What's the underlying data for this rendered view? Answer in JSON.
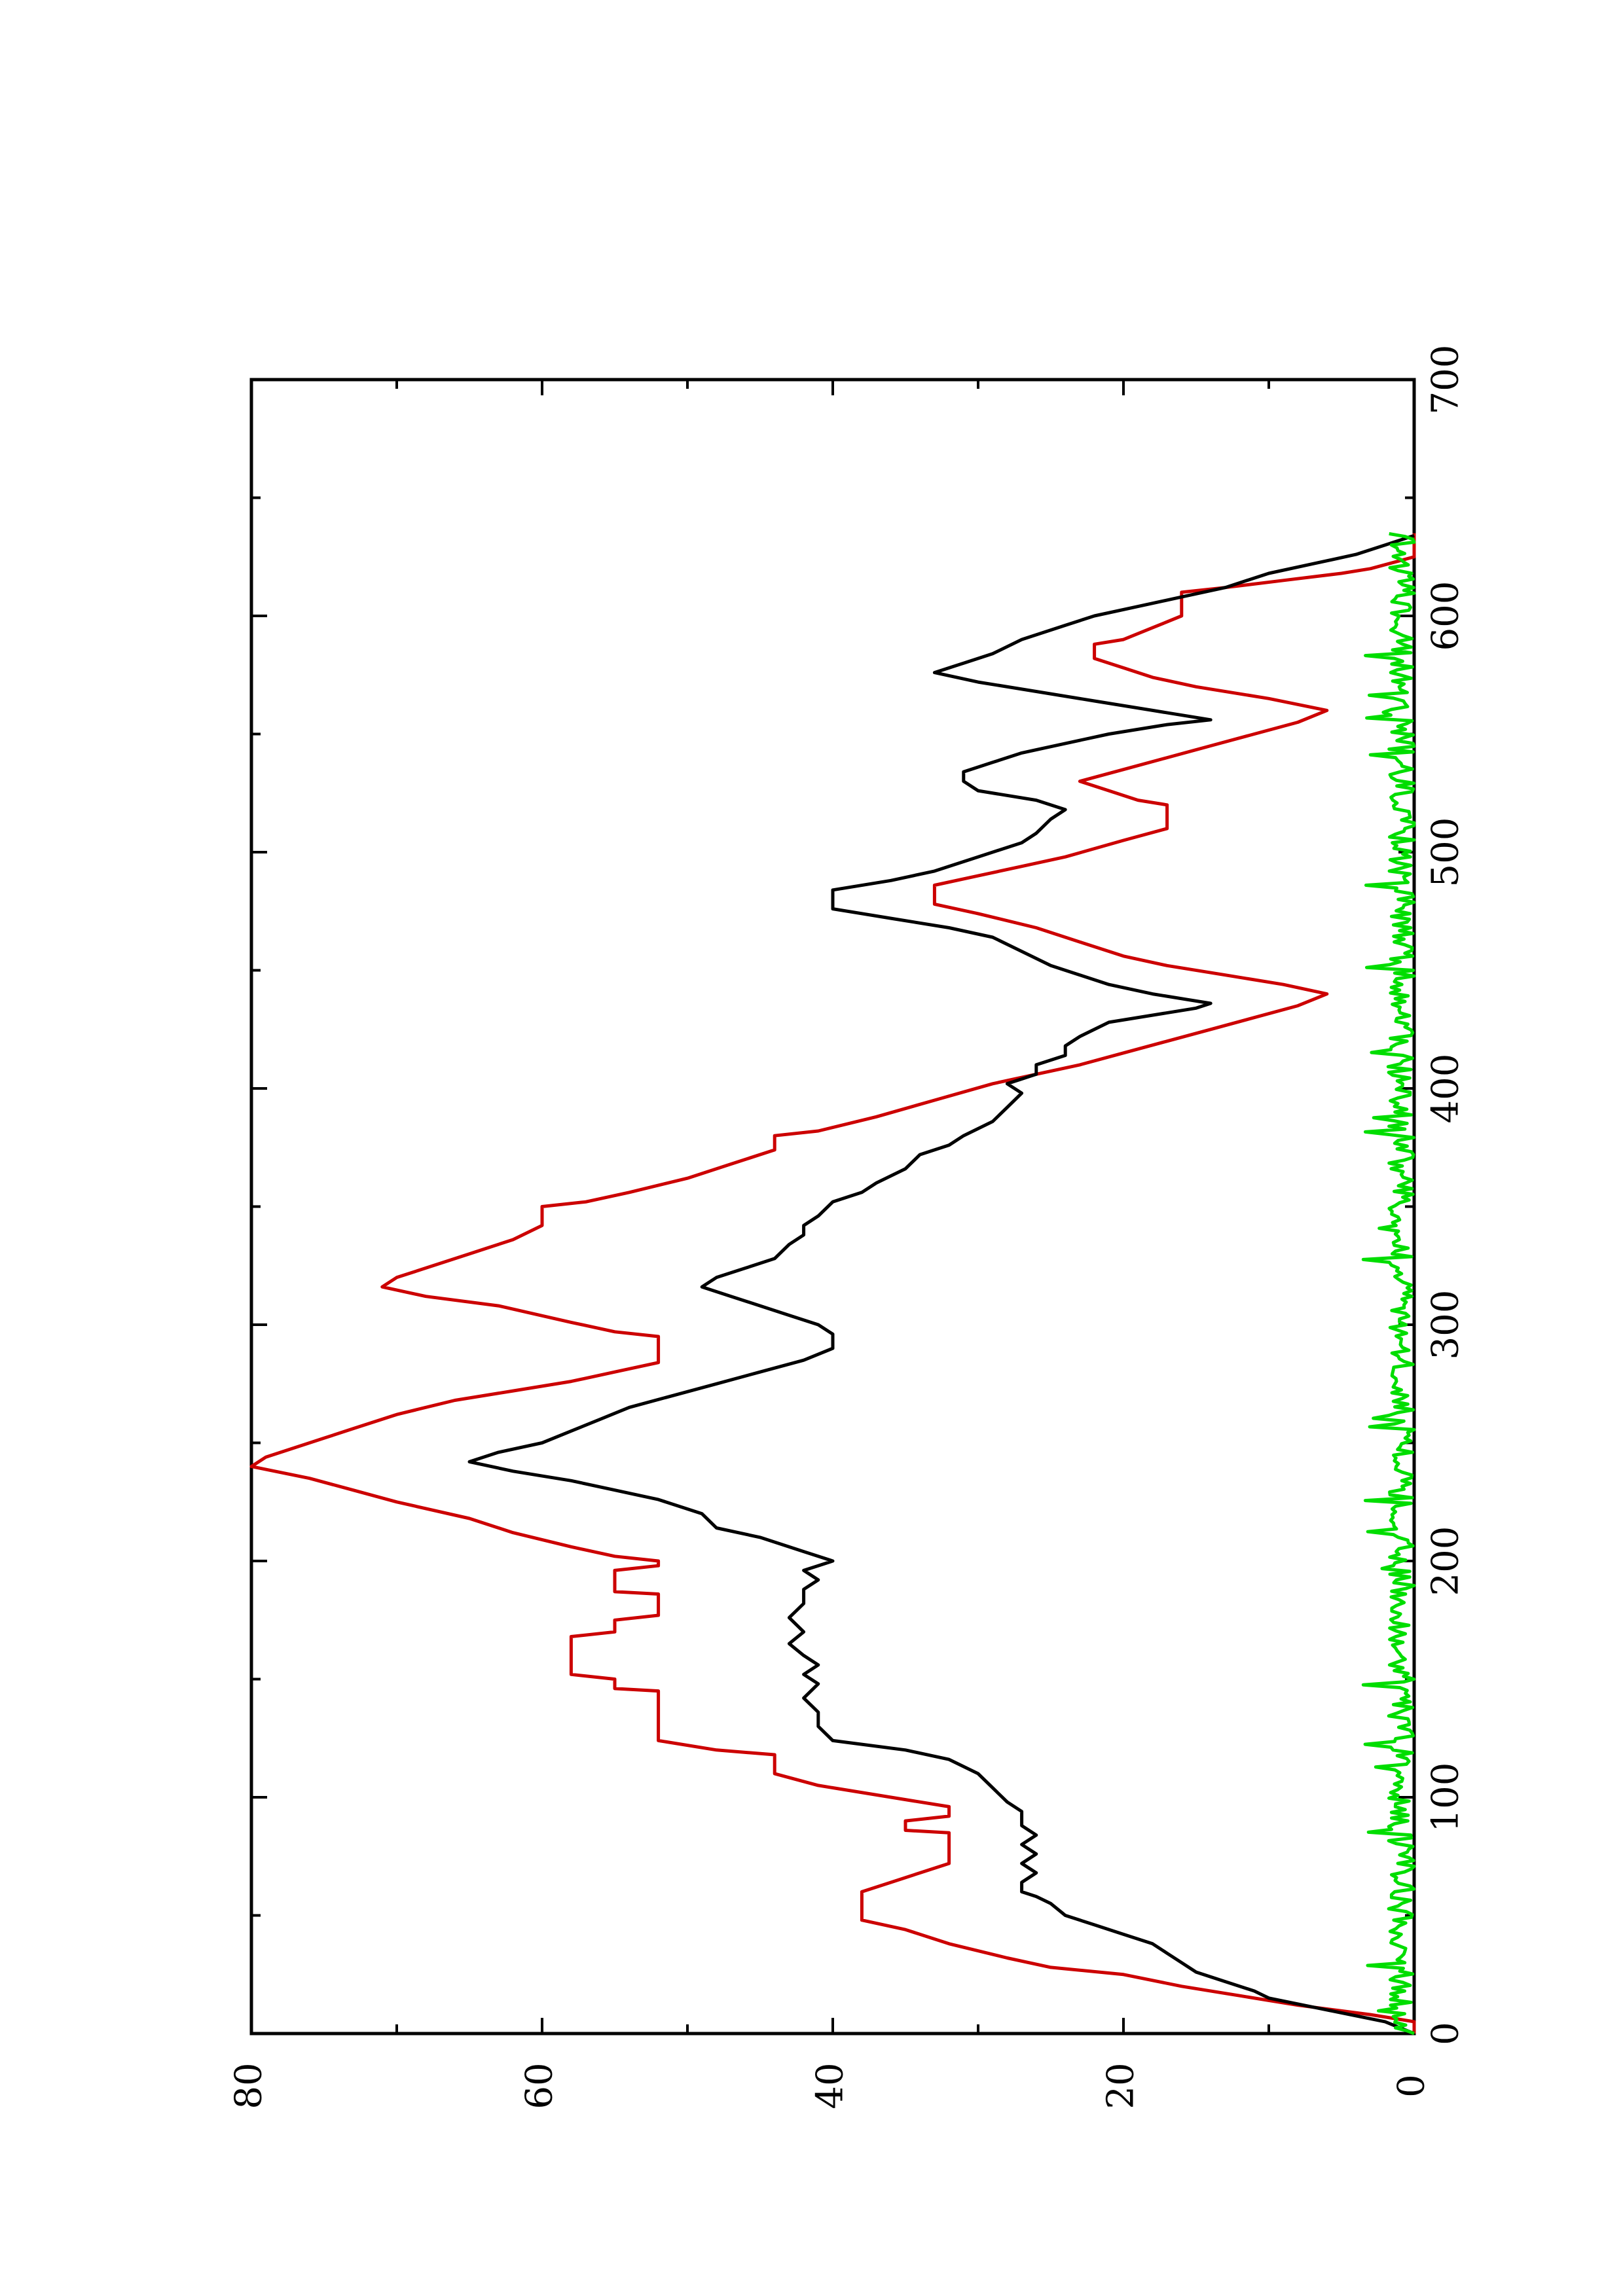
{
  "chart_data": {
    "type": "line",
    "orientation": "rotated-90-ccw",
    "title": "",
    "xlabel": "",
    "ylabel": "",
    "xlim": [
      0,
      700
    ],
    "ylim": [
      0,
      80
    ],
    "x_ticks": [
      0,
      100,
      200,
      300,
      400,
      500,
      600,
      700
    ],
    "y_ticks": [
      0,
      20,
      40,
      60,
      80
    ],
    "x_tick_labels": [
      "0",
      "100",
      "200",
      "300",
      "400",
      "500",
      "600",
      "700"
    ],
    "y_tick_labels": [
      "0",
      "20",
      "40",
      "60",
      "80"
    ],
    "x_minor_step": 50,
    "y_minor_step": 10,
    "grid": false,
    "legend": "none",
    "series": [
      {
        "color": "#cc0000",
        "points": [
          [
            0,
            0
          ],
          [
            5,
            0
          ],
          [
            8,
            3
          ],
          [
            12,
            8
          ],
          [
            16,
            12
          ],
          [
            20,
            16
          ],
          [
            25,
            20
          ],
          [
            28,
            25
          ],
          [
            32,
            28
          ],
          [
            38,
            32
          ],
          [
            44,
            35
          ],
          [
            48,
            38
          ],
          [
            55,
            38
          ],
          [
            60,
            38
          ],
          [
            64,
            36
          ],
          [
            68,
            34
          ],
          [
            72,
            32
          ],
          [
            85,
            32
          ],
          [
            86,
            35
          ],
          [
            90,
            35
          ],
          [
            92,
            32
          ],
          [
            96,
            32
          ],
          [
            100,
            36
          ],
          [
            105,
            41
          ],
          [
            110,
            44
          ],
          [
            118,
            44
          ],
          [
            120,
            48
          ],
          [
            124,
            52
          ],
          [
            145,
            52
          ],
          [
            146,
            55
          ],
          [
            150,
            55
          ],
          [
            152,
            58
          ],
          [
            168,
            58
          ],
          [
            170,
            55
          ],
          [
            175,
            55
          ],
          [
            177,
            52
          ],
          [
            186,
            52
          ],
          [
            187,
            55
          ],
          [
            196,
            55
          ],
          [
            198,
            52
          ],
          [
            200,
            52
          ],
          [
            202,
            55
          ],
          [
            206,
            58
          ],
          [
            212,
            62
          ],
          [
            218,
            65
          ],
          [
            225,
            70
          ],
          [
            230,
            73
          ],
          [
            235,
            76
          ],
          [
            240,
            80
          ],
          [
            244,
            79
          ],
          [
            248,
            77
          ],
          [
            252,
            75
          ],
          [
            256,
            73
          ],
          [
            262,
            70
          ],
          [
            268,
            66
          ],
          [
            272,
            62
          ],
          [
            276,
            58
          ],
          [
            280,
            55
          ],
          [
            284,
            52
          ],
          [
            295,
            52
          ],
          [
            297,
            55
          ],
          [
            301,
            58
          ],
          [
            308,
            63
          ],
          [
            312,
            68
          ],
          [
            316,
            71
          ],
          [
            320,
            70
          ],
          [
            324,
            68
          ],
          [
            330,
            65
          ],
          [
            336,
            62
          ],
          [
            342,
            60
          ],
          [
            350,
            60
          ],
          [
            352,
            57
          ],
          [
            356,
            54
          ],
          [
            362,
            50
          ],
          [
            368,
            47
          ],
          [
            374,
            44
          ],
          [
            380,
            44
          ],
          [
            382,
            41
          ],
          [
            388,
            37
          ],
          [
            395,
            33
          ],
          [
            402,
            29
          ],
          [
            406,
            26
          ],
          [
            410,
            23
          ],
          [
            415,
            20
          ],
          [
            420,
            17
          ],
          [
            425,
            14
          ],
          [
            430,
            11
          ],
          [
            435,
            8
          ],
          [
            440,
            6
          ],
          [
            444,
            9
          ],
          [
            448,
            13
          ],
          [
            452,
            17
          ],
          [
            456,
            20
          ],
          [
            462,
            23
          ],
          [
            468,
            26
          ],
          [
            474,
            30
          ],
          [
            478,
            33
          ],
          [
            486,
            33
          ],
          [
            490,
            30
          ],
          [
            494,
            27
          ],
          [
            498,
            24
          ],
          [
            505,
            20
          ],
          [
            510,
            17
          ],
          [
            520,
            17
          ],
          [
            522,
            19
          ],
          [
            526,
            21
          ],
          [
            530,
            23
          ],
          [
            535,
            20
          ],
          [
            540,
            17
          ],
          [
            545,
            14
          ],
          [
            550,
            11
          ],
          [
            555,
            8
          ],
          [
            560,
            6
          ],
          [
            565,
            10
          ],
          [
            570,
            15
          ],
          [
            574,
            18
          ],
          [
            578,
            20
          ],
          [
            582,
            22
          ],
          [
            588,
            22
          ],
          [
            590,
            20
          ],
          [
            595,
            18
          ],
          [
            600,
            16
          ],
          [
            610,
            16
          ],
          [
            612,
            13
          ],
          [
            615,
            9
          ],
          [
            618,
            5
          ],
          [
            620,
            3
          ],
          [
            625,
            0
          ],
          [
            635,
            0
          ]
        ]
      },
      {
        "color": "#000000",
        "points": [
          [
            0,
            0
          ],
          [
            5,
            2
          ],
          [
            10,
            6
          ],
          [
            15,
            10
          ],
          [
            18,
            11
          ],
          [
            22,
            13
          ],
          [
            26,
            15
          ],
          [
            30,
            16
          ],
          [
            34,
            17
          ],
          [
            38,
            18
          ],
          [
            42,
            20
          ],
          [
            46,
            22
          ],
          [
            50,
            24
          ],
          [
            55,
            25
          ],
          [
            58,
            26
          ],
          [
            60,
            27
          ],
          [
            64,
            27
          ],
          [
            68,
            26
          ],
          [
            72,
            27
          ],
          [
            76,
            26
          ],
          [
            80,
            27
          ],
          [
            84,
            26
          ],
          [
            88,
            27
          ],
          [
            94,
            27
          ],
          [
            98,
            28
          ],
          [
            104,
            29
          ],
          [
            110,
            30
          ],
          [
            116,
            32
          ],
          [
            120,
            35
          ],
          [
            124,
            40
          ],
          [
            130,
            41
          ],
          [
            136,
            41
          ],
          [
            142,
            42
          ],
          [
            148,
            41
          ],
          [
            152,
            42
          ],
          [
            156,
            41
          ],
          [
            160,
            42
          ],
          [
            165,
            43
          ],
          [
            170,
            42
          ],
          [
            176,
            43
          ],
          [
            182,
            42
          ],
          [
            188,
            42
          ],
          [
            192,
            41
          ],
          [
            196,
            42
          ],
          [
            198,
            41
          ],
          [
            200,
            40
          ],
          [
            204,
            42
          ],
          [
            210,
            45
          ],
          [
            214,
            48
          ],
          [
            220,
            49
          ],
          [
            226,
            52
          ],
          [
            230,
            55
          ],
          [
            234,
            58
          ],
          [
            238,
            62
          ],
          [
            242,
            65
          ],
          [
            246,
            63
          ],
          [
            250,
            60
          ],
          [
            255,
            58
          ],
          [
            260,
            56
          ],
          [
            265,
            54
          ],
          [
            270,
            51
          ],
          [
            275,
            48
          ],
          [
            280,
            45
          ],
          [
            285,
            42
          ],
          [
            290,
            40
          ],
          [
            296,
            40
          ],
          [
            300,
            41
          ],
          [
            304,
            43
          ],
          [
            308,
            45
          ],
          [
            312,
            47
          ],
          [
            316,
            49
          ],
          [
            320,
            48
          ],
          [
            324,
            46
          ],
          [
            328,
            44
          ],
          [
            334,
            43
          ],
          [
            338,
            42
          ],
          [
            342,
            42
          ],
          [
            346,
            41
          ],
          [
            352,
            40
          ],
          [
            356,
            38
          ],
          [
            360,
            37
          ],
          [
            366,
            35
          ],
          [
            372,
            34
          ],
          [
            376,
            32
          ],
          [
            380,
            31
          ],
          [
            386,
            29
          ],
          [
            392,
            28
          ],
          [
            398,
            27
          ],
          [
            402,
            28
          ],
          [
            406,
            26
          ],
          [
            410,
            26
          ],
          [
            414,
            24
          ],
          [
            418,
            24
          ],
          [
            422,
            23
          ],
          [
            428,
            21
          ],
          [
            434,
            15
          ],
          [
            436,
            14
          ],
          [
            440,
            18
          ],
          [
            444,
            21
          ],
          [
            448,
            23
          ],
          [
            452,
            25
          ],
          [
            458,
            27
          ],
          [
            464,
            29
          ],
          [
            468,
            32
          ],
          [
            472,
            36
          ],
          [
            476,
            40
          ],
          [
            484,
            40
          ],
          [
            488,
            36
          ],
          [
            492,
            33
          ],
          [
            498,
            30
          ],
          [
            504,
            27
          ],
          [
            508,
            26
          ],
          [
            514,
            25
          ],
          [
            518,
            24
          ],
          [
            522,
            26
          ],
          [
            526,
            30
          ],
          [
            530,
            31
          ],
          [
            534,
            31
          ],
          [
            538,
            29
          ],
          [
            542,
            27
          ],
          [
            546,
            24
          ],
          [
            550,
            21
          ],
          [
            554,
            17
          ],
          [
            556,
            14
          ],
          [
            560,
            18
          ],
          [
            564,
            22
          ],
          [
            568,
            26
          ],
          [
            572,
            30
          ],
          [
            576,
            33
          ],
          [
            580,
            31
          ],
          [
            584,
            29
          ],
          [
            590,
            27
          ],
          [
            596,
            24
          ],
          [
            600,
            22
          ],
          [
            604,
            19
          ],
          [
            608,
            16
          ],
          [
            612,
            13
          ],
          [
            618,
            10
          ],
          [
            622,
            7
          ],
          [
            626,
            4
          ],
          [
            630,
            2
          ],
          [
            634,
            0
          ]
        ]
      },
      {
        "color": "#00dd00",
        "band_max": 2.2,
        "note": ""
      }
    ]
  }
}
